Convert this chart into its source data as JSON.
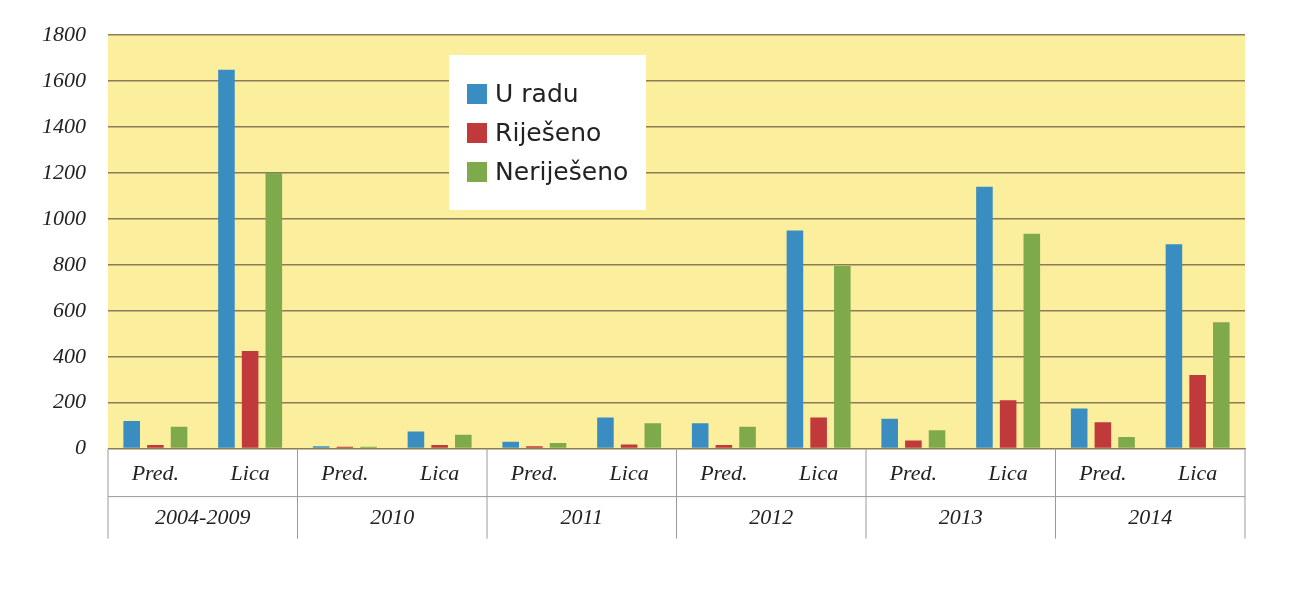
{
  "chart_data": {
    "type": "bar",
    "categories": [
      "Pred.",
      "Lica",
      "Pred.",
      "Lica",
      "Pred.",
      "Lica",
      "Pred.",
      "Lica",
      "Pred.",
      "Lica",
      "Pred.",
      "Lica"
    ],
    "series": [
      {
        "name": "U radu",
        "color": "#3a8dc1",
        "values": [
          120,
          1650,
          10,
          75,
          30,
          135,
          110,
          950,
          130,
          1140,
          175,
          890
        ]
      },
      {
        "name": "Riješeno",
        "color": "#c0393b",
        "values": [
          16,
          425,
          8,
          16,
          10,
          18,
          16,
          135,
          35,
          210,
          115,
          320
        ]
      },
      {
        "name": "Neriješeno",
        "color": "#7faa4b",
        "values": [
          95,
          1200,
          8,
          60,
          24,
          110,
          95,
          795,
          80,
          935,
          50,
          550
        ]
      }
    ],
    "annotations": [
      "2004-2009",
      "2010",
      "2011",
      "2012",
      "2013",
      "2014"
    ],
    "ylim": [
      0,
      1800
    ],
    "yticks": [
      0,
      200,
      400,
      600,
      800,
      1000,
      1200,
      1400,
      1600,
      1800
    ],
    "grid": "y",
    "legend": "top left"
  }
}
